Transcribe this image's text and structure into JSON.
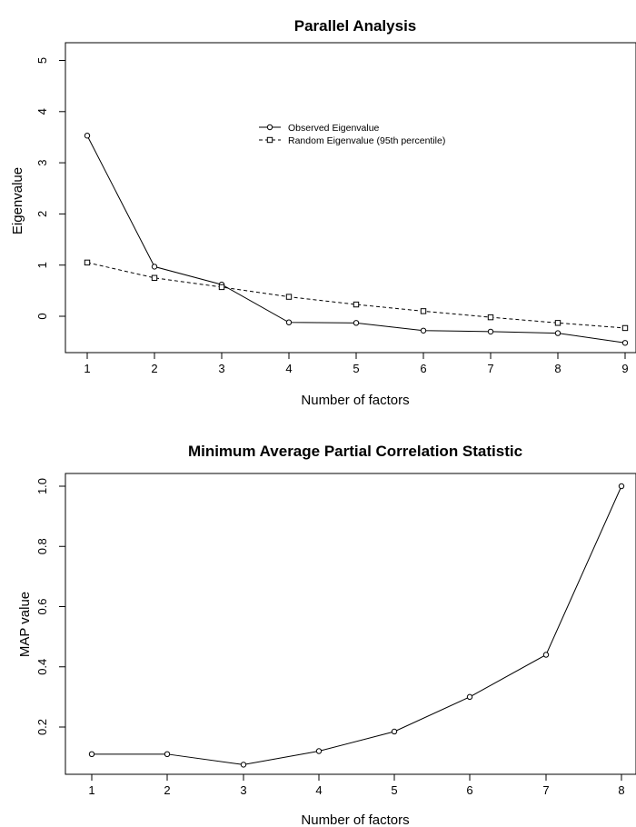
{
  "chart_data": [
    {
      "type": "line",
      "title": "Parallel Analysis",
      "xlabel": "Number of factors",
      "ylabel": "Eigenvalue",
      "x": [
        1,
        2,
        3,
        4,
        5,
        6,
        7,
        8,
        9
      ],
      "xlim": [
        1,
        9
      ],
      "ylim": [
        -0.5,
        5
      ],
      "x_ticks": [
        "1",
        "2",
        "3",
        "4",
        "5",
        "6",
        "7",
        "8",
        "9"
      ],
      "y_ticks": [
        "0",
        "1",
        "2",
        "3",
        "4",
        "5"
      ],
      "grid": false,
      "legend_position": "upper-middle",
      "series": [
        {
          "name": "Observed Eigenvalue",
          "values": [
            3.53,
            0.97,
            0.62,
            -0.12,
            -0.13,
            -0.28,
            -0.3,
            -0.33,
            -0.52
          ],
          "line_style": "solid",
          "marker": "circle"
        },
        {
          "name": "Random Eigenvalue (95th percentile)",
          "values": [
            1.05,
            0.75,
            0.57,
            0.38,
            0.23,
            0.1,
            -0.02,
            -0.13,
            -0.23
          ],
          "line_style": "dashed",
          "marker": "square"
        }
      ]
    },
    {
      "type": "line",
      "title": "Minimum Average Partial Correlation Statistic",
      "xlabel": "Number of factors",
      "ylabel": "MAP value",
      "x": [
        1,
        2,
        3,
        4,
        5,
        6,
        7,
        8
      ],
      "xlim": [
        1,
        8
      ],
      "ylim": [
        0.04,
        1.03
      ],
      "x_ticks": [
        "1",
        "2",
        "3",
        "4",
        "5",
        "6",
        "7",
        "8"
      ],
      "y_ticks": [
        "0.2",
        "0.4",
        "0.6",
        "0.8",
        "1.0"
      ],
      "grid": false,
      "series": [
        {
          "values": [
            0.11,
            0.11,
            0.075,
            0.12,
            0.185,
            0.3,
            0.44,
            1.0
          ],
          "line_style": "solid",
          "marker": "circle"
        }
      ]
    }
  ]
}
